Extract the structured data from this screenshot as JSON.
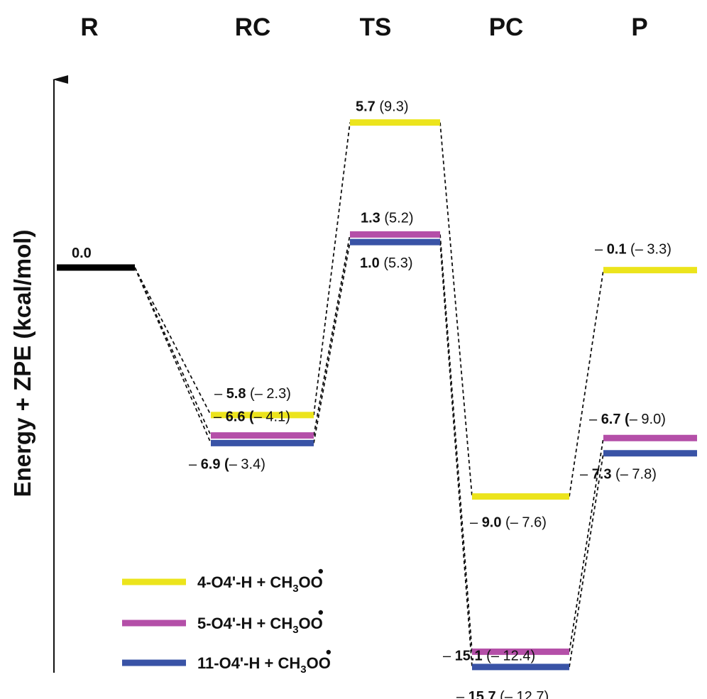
{
  "chart_data": {
    "type": "energy-profile",
    "ylabel": "Energy + ZPE (kcal/mol)",
    "stages": [
      "R",
      "RC",
      "TS",
      "PC",
      "P"
    ],
    "reference": {
      "stage": "R",
      "value": 0.0,
      "label": "0.0",
      "color": "#000000"
    },
    "series": [
      {
        "name": "4-O4'-H + CH3OO•",
        "legend": {
          "pre": "4-O4'-H + CH",
          "sub": "3",
          "post": "OO"
        },
        "color": "#ECE41C",
        "values": [
          0.0,
          -5.8,
          5.7,
          -9.0,
          -0.1
        ],
        "labels": [
          null,
          {
            "sign": "– ",
            "bold": "5.8",
            "post": " (– 2.3)"
          },
          {
            "sign": "",
            "bold": "5.7",
            "post": " (9.3)"
          },
          {
            "sign": "– ",
            "bold": "9.0",
            "post": " (– 7.6)"
          },
          {
            "sign": "– ",
            "bold": "0.1",
            "post": " (– 3.3)"
          }
        ]
      },
      {
        "name": "5-O4'-H + CH3OO•",
        "legend": {
          "pre": "5-O4'-H + CH",
          "sub": "3",
          "post": "OO"
        },
        "color": "#B44FA8",
        "values": [
          0.0,
          -6.6,
          1.3,
          -15.1,
          -6.7
        ],
        "labels": [
          null,
          {
            "sign": "– ",
            "bold": "6.6 (",
            "post": "– 4.1)"
          },
          {
            "sign": "",
            "bold": "1.3",
            "post": " (5.2)"
          },
          {
            "sign": "– ",
            "bold": "15.1",
            "post": " (– 12.4)"
          },
          {
            "sign": "– ",
            "bold": "6.7 (",
            "post": "– 9.0)"
          }
        ]
      },
      {
        "name": "11-O4'-H + CH3OO•",
        "legend": {
          "pre": "11-O4'-H + CH",
          "sub": "3",
          "post": "OO"
        },
        "color": "#3953A6",
        "values": [
          0.0,
          -6.9,
          1.0,
          -15.7,
          -7.3
        ],
        "labels": [
          null,
          {
            "sign": "– ",
            "bold": "6.9 (",
            "post": "– 3.4)"
          },
          {
            "sign": "",
            "bold": "1.0",
            "post": " (5.3)"
          },
          {
            "sign": "– ",
            "bold": "15.7",
            "post": " (– 12.7)"
          },
          {
            "sign": "– ",
            "bold": "7.3",
            "post": " (– 7.8)"
          }
        ]
      }
    ]
  }
}
